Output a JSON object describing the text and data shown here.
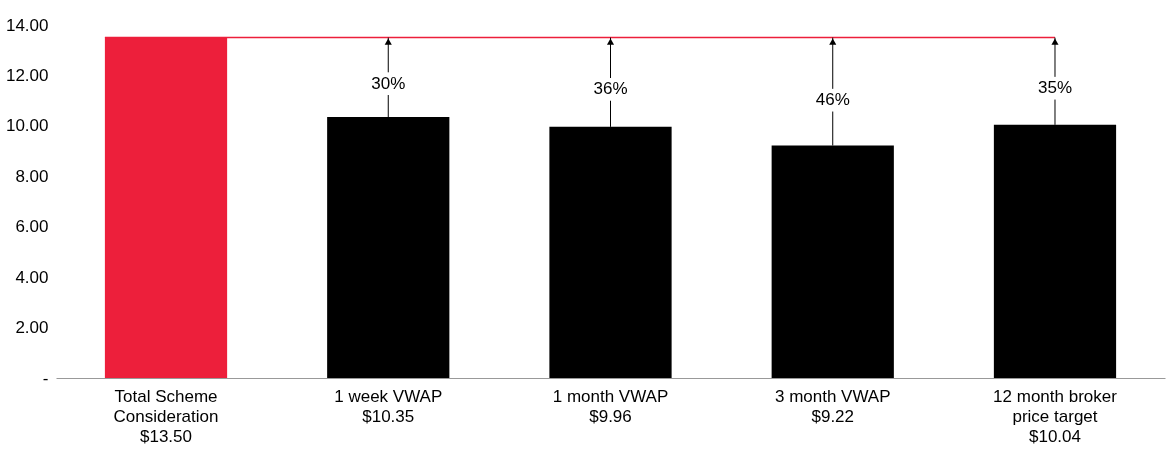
{
  "chart_data": {
    "type": "bar",
    "categories": [
      "Total Scheme\nConsideration\n$13.50",
      "1 week VWAP\n$10.35",
      "1 month VWAP\n$9.96",
      "3 month VWAP\n$9.22",
      "12 month broker\nprice target\n$10.04"
    ],
    "values": [
      13.5,
      10.35,
      9.96,
      9.22,
      10.04
    ],
    "colors": [
      "#ed1f3b",
      "#000000",
      "#000000",
      "#000000",
      "#000000"
    ],
    "ylim": [
      0,
      14
    ],
    "yticks": [
      {
        "value": 0,
        "label": "-"
      },
      {
        "value": 2,
        "label": "2.00"
      },
      {
        "value": 4,
        "label": "4.00"
      },
      {
        "value": 6,
        "label": "6.00"
      },
      {
        "value": 8,
        "label": "8.00"
      },
      {
        "value": 10,
        "label": "10.00"
      },
      {
        "value": 12,
        "label": "12.00"
      },
      {
        "value": 14,
        "label": "14.00"
      }
    ],
    "ref_lines": [
      {
        "axis": "y",
        "value": 13.5,
        "color": "#ed1f3b"
      }
    ],
    "annotations": [
      {
        "text": "30%",
        "x": "1 week VWAP\n$10.35",
        "y": 10.35
      },
      {
        "text": "36%",
        "x": "1 month VWAP\n$9.96",
        "y": 9.96
      },
      {
        "text": "46%",
        "x": "3 month VWAP\n$9.22",
        "y": 9.22
      },
      {
        "text": "35%",
        "x": "12 month broker\nprice target\n$10.04",
        "y": 10.04
      }
    ],
    "grid": false
  }
}
